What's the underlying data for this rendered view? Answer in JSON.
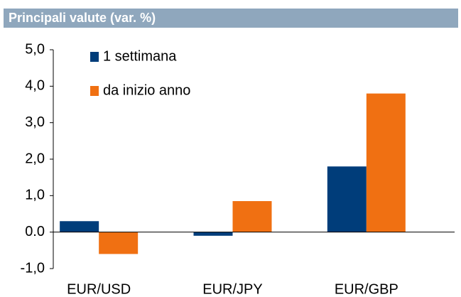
{
  "chart_data": {
    "type": "bar",
    "title": "Principali valute (var. %)",
    "categories": [
      "EUR/USD",
      "EUR/JPY",
      "EUR/GBP"
    ],
    "series": [
      {
        "name": "1 settimana",
        "color": "#003d7a",
        "values": [
          0.3,
          -0.1,
          1.8
        ]
      },
      {
        "name": "da inizio anno",
        "color": "#f07012",
        "values": [
          -0.6,
          0.85,
          3.8
        ]
      }
    ],
    "ylim": [
      -1,
      5
    ],
    "yticks": [
      {
        "value": -1,
        "label": "-1,0"
      },
      {
        "value": 0,
        "label": "0.0"
      },
      {
        "value": 1,
        "label": "1,0"
      },
      {
        "value": 2,
        "label": "2,0"
      },
      {
        "value": 3,
        "label": "3,0"
      },
      {
        "value": 4,
        "label": "4,0"
      },
      {
        "value": 5,
        "label": "5,0"
      }
    ],
    "legend": "upper left"
  }
}
